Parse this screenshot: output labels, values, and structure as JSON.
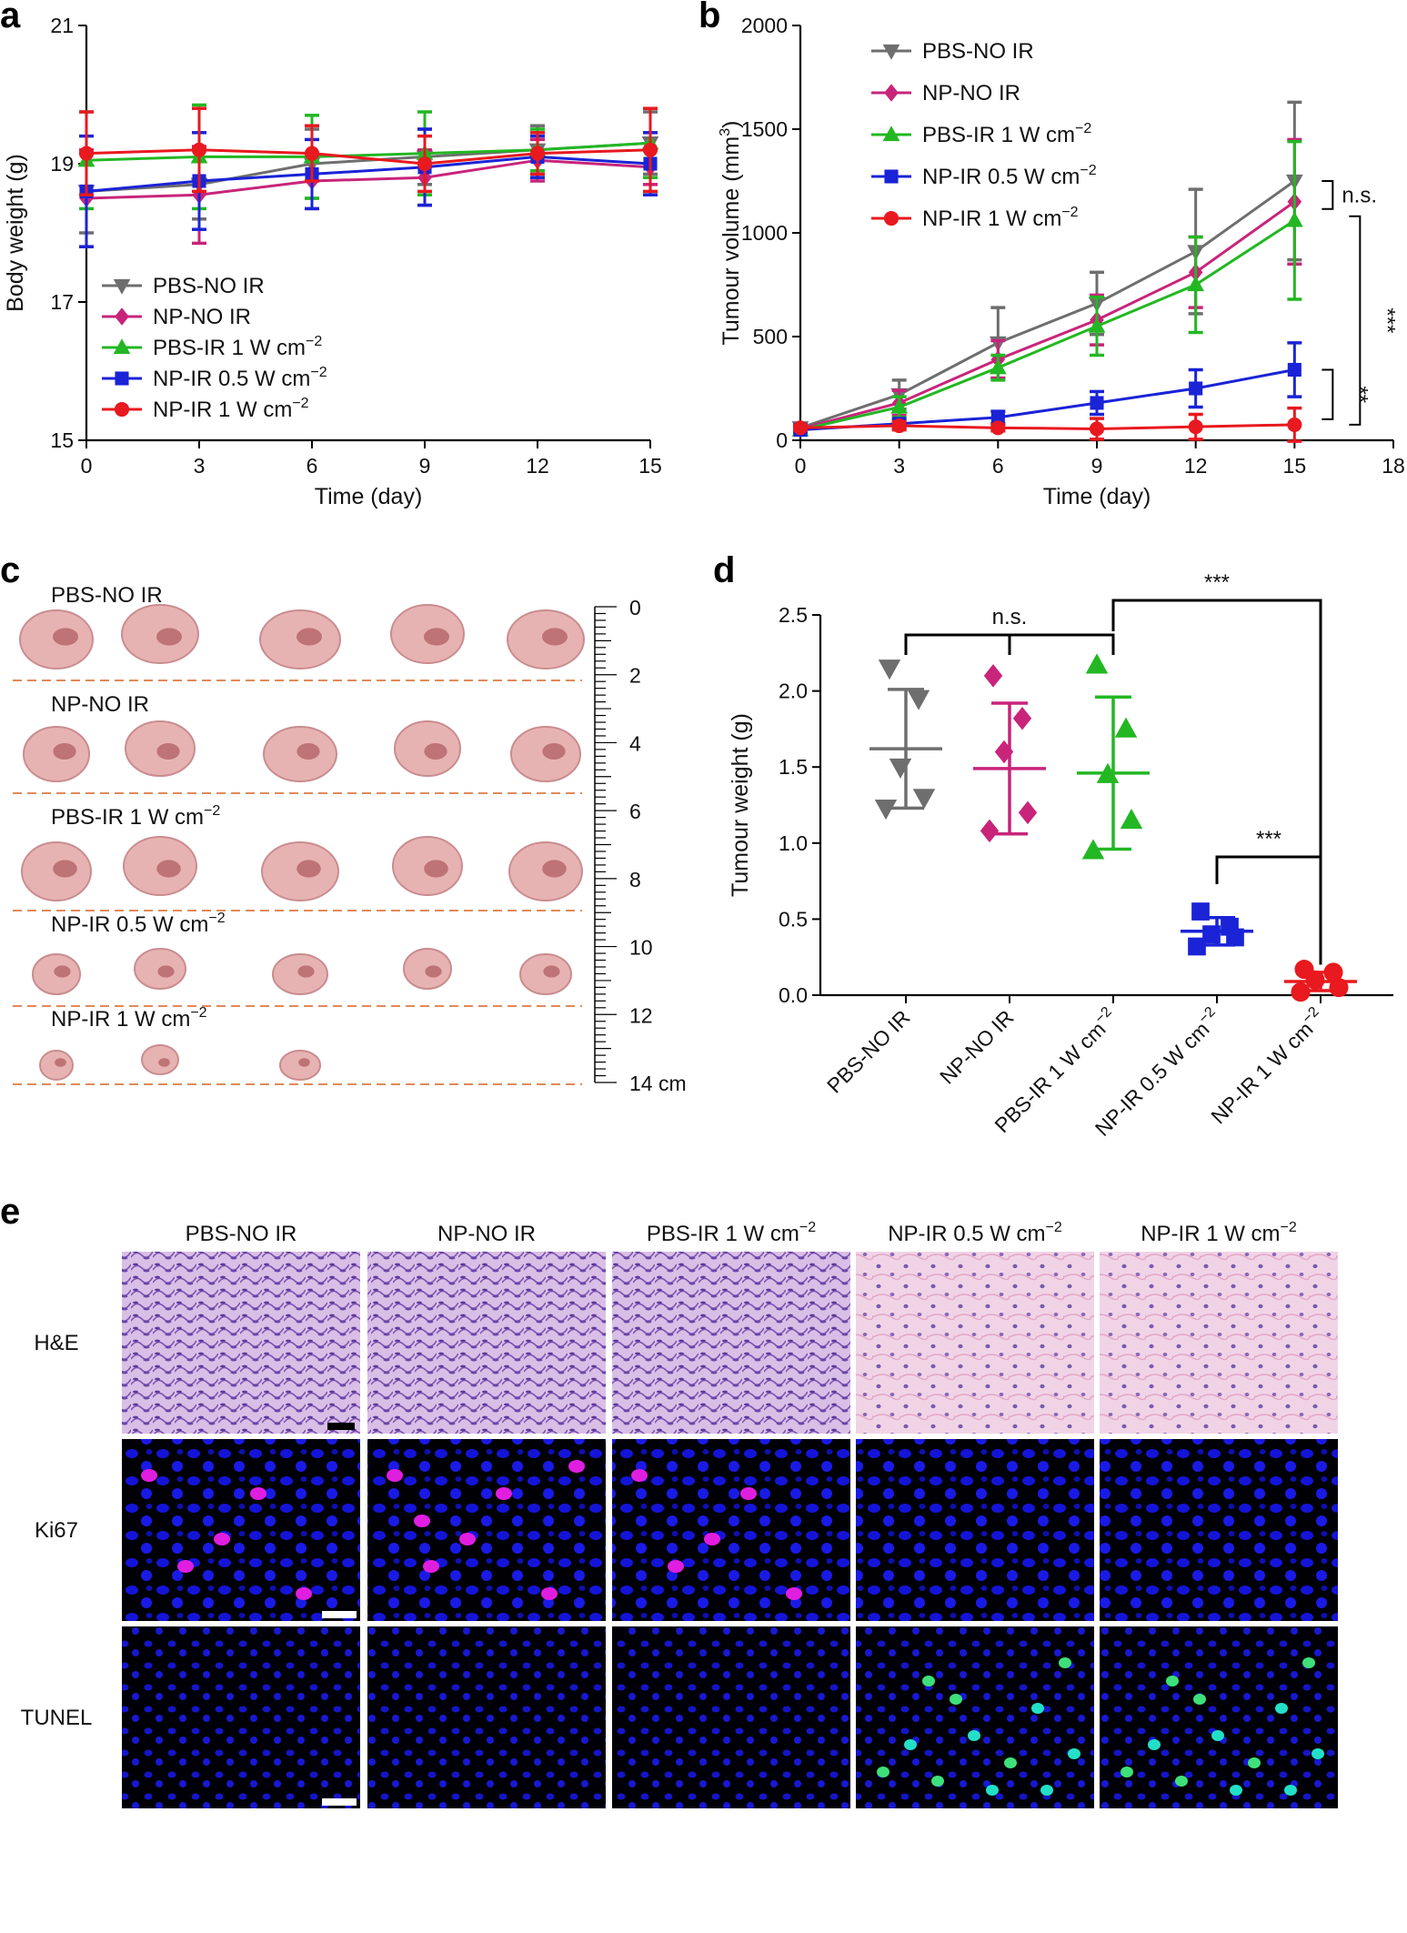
{
  "panels": {
    "a": "a",
    "b": "b",
    "c": "c",
    "d": "d",
    "e": "e"
  },
  "group_labels": [
    "PBS-NO IR",
    "NP-NO IR",
    "PBS-IR 1 W cm",
    "NP-IR 0.5 W cm",
    "NP-IR 1 W cm"
  ],
  "unit_superscript": "−2",
  "colors": {
    "PBS-NO IR": "#6e6e6e",
    "NP-NO IR": "#c8247a",
    "PBS-IR 1 W cm": "#23b723",
    "NP-IR 0.5 W cm": "#1a23d6",
    "NP-IR 1 W cm": "#e8191f"
  },
  "chart_data": [
    {
      "panel": "a",
      "type": "line",
      "xlabel": "Time (day)",
      "ylabel": "Body weight (g)",
      "xlim": [
        0,
        15
      ],
      "ylim": [
        15,
        21
      ],
      "xticks": [
        0,
        3,
        6,
        9,
        12,
        15
      ],
      "yticks": [
        15,
        17,
        19,
        21
      ],
      "legend": "bottom-left",
      "x": [
        0,
        3,
        6,
        9,
        12,
        15
      ],
      "series": [
        {
          "name": "PBS-NO IR",
          "marker": "tri-down",
          "values": [
            18.6,
            18.7,
            19.0,
            19.1,
            19.2,
            19.3
          ],
          "errors": [
            0.6,
            0.5,
            0.5,
            0.4,
            0.35,
            0.45
          ]
        },
        {
          "name": "NP-NO IR",
          "marker": "diamond",
          "values": [
            18.5,
            18.55,
            18.75,
            18.8,
            19.05,
            18.95
          ],
          "errors": [
            0.7,
            0.7,
            0.4,
            0.4,
            0.3,
            0.25
          ]
        },
        {
          "name": "PBS-IR 1 W cm",
          "marker": "tri-up",
          "values": [
            19.05,
            19.1,
            19.1,
            19.15,
            19.2,
            19.3
          ],
          "errors": [
            0.7,
            0.75,
            0.6,
            0.6,
            0.3,
            0.5
          ]
        },
        {
          "name": "NP-IR 0.5 W cm",
          "marker": "square",
          "values": [
            18.6,
            18.75,
            18.85,
            18.95,
            19.1,
            19.0
          ],
          "errors": [
            0.8,
            0.7,
            0.5,
            0.55,
            0.3,
            0.45
          ]
        },
        {
          "name": "NP-IR 1 W cm",
          "marker": "circle",
          "values": [
            19.15,
            19.2,
            19.15,
            19.0,
            19.15,
            19.2
          ],
          "errors": [
            0.6,
            0.6,
            0.4,
            0.4,
            0.3,
            0.6
          ]
        }
      ]
    },
    {
      "panel": "b",
      "type": "line",
      "xlabel": "Time (day)",
      "ylabel": "Tumour volume (mm",
      "ylabel_sup": "3",
      "ylabel_end": ")",
      "xlim": [
        0,
        18
      ],
      "ylim": [
        0,
        2000
      ],
      "xticks": [
        0,
        3,
        6,
        9,
        12,
        15,
        18
      ],
      "yticks": [
        0,
        500,
        1000,
        1500,
        2000
      ],
      "legend": "top-left",
      "x": [
        0,
        3,
        6,
        9,
        12,
        15
      ],
      "series": [
        {
          "name": "PBS-NO IR",
          "marker": "tri-down",
          "values": [
            60,
            220,
            470,
            660,
            910,
            1250
          ],
          "errors": [
            15,
            70,
            170,
            150,
            300,
            380
          ]
        },
        {
          "name": "NP-NO IR",
          "marker": "diamond",
          "values": [
            55,
            180,
            390,
            580,
            810,
            1150
          ],
          "errors": [
            15,
            60,
            90,
            120,
            170,
            300
          ]
        },
        {
          "name": "PBS-IR 1 W cm",
          "marker": "tri-up",
          "values": [
            50,
            160,
            350,
            550,
            750,
            1060
          ],
          "errors": [
            15,
            50,
            60,
            140,
            230,
            380
          ]
        },
        {
          "name": "NP-IR 0.5 W cm",
          "marker": "square",
          "values": [
            50,
            80,
            110,
            180,
            250,
            340
          ],
          "errors": [
            10,
            20,
            30,
            55,
            90,
            130
          ]
        },
        {
          "name": "NP-IR 1 W cm",
          "marker": "circle",
          "values": [
            60,
            70,
            60,
            55,
            65,
            75
          ],
          "errors": [
            10,
            20,
            15,
            50,
            60,
            80
          ]
        }
      ],
      "annotations": [
        {
          "text": "n.s.",
          "between": [
            "PBS-NO IR",
            "NP-NO IR"
          ]
        },
        {
          "text": "***",
          "between": [
            "NP-NO IR",
            "NP-IR 1 W cm"
          ]
        },
        {
          "text": "**",
          "between": [
            "NP-IR 0.5 W cm",
            "NP-IR 1 W cm"
          ]
        }
      ]
    },
    {
      "panel": "d",
      "type": "scatter",
      "ylabel": "Tumour weight (g)",
      "ylim": [
        0,
        2.5
      ],
      "yticks": [
        0.0,
        0.5,
        1.0,
        1.5,
        2.0,
        2.5
      ],
      "ytick_labels": [
        "0.0",
        "0.5",
        "1.0",
        "1.5",
        "2.0",
        "2.5"
      ],
      "categories": [
        "PBS-NO IR",
        "NP-NO IR",
        "PBS-IR 1 W cm",
        "NP-IR 0.5 W cm",
        "NP-IR 1 W cm"
      ],
      "groups": [
        {
          "name": "PBS-NO IR",
          "marker": "tri-down",
          "points": [
            2.15,
            1.95,
            1.5,
            1.3,
            1.23
          ],
          "mean": 1.62,
          "sd": 0.39
        },
        {
          "name": "NP-NO IR",
          "marker": "diamond",
          "points": [
            2.1,
            1.82,
            1.6,
            1.2,
            1.08
          ],
          "mean": 1.49,
          "sd": 0.43
        },
        {
          "name": "PBS-IR 1 W cm",
          "marker": "tri-up",
          "points": [
            2.17,
            1.75,
            1.45,
            1.15,
            0.95
          ],
          "mean": 1.46,
          "sd": 0.5
        },
        {
          "name": "NP-IR 0.5 W cm",
          "marker": "square",
          "points": [
            0.55,
            0.45,
            0.4,
            0.38,
            0.32
          ],
          "mean": 0.42,
          "sd": 0.09
        },
        {
          "name": "NP-IR 1 W cm",
          "marker": "circle",
          "points": [
            0.17,
            0.15,
            0.1,
            0.05,
            0.02
          ],
          "mean": 0.09,
          "sd": 0.06
        }
      ],
      "annotations": [
        {
          "text": "n.s.",
          "from": 0,
          "to": 2
        },
        {
          "text": "***",
          "from": 2,
          "to": 4
        },
        {
          "text": "***",
          "from": 3,
          "to": 4
        }
      ]
    }
  ],
  "panel_c": {
    "rows": [
      "PBS-NO IR",
      "NP-NO IR",
      "PBS-IR 1 W cm",
      "NP-IR 0.5 W cm",
      "NP-IR 1 W cm"
    ],
    "ruler_labels": [
      "0",
      "2",
      "4",
      "6",
      "8",
      "10",
      "12",
      "14 cm"
    ]
  },
  "panel_e": {
    "columns": [
      "PBS-NO IR",
      "NP-NO IR",
      "PBS-IR 1 W cm",
      "NP-IR 0.5 W cm",
      "NP-IR 1 W cm"
    ],
    "rows": [
      "H&E",
      "Ki67",
      "TUNEL"
    ]
  }
}
